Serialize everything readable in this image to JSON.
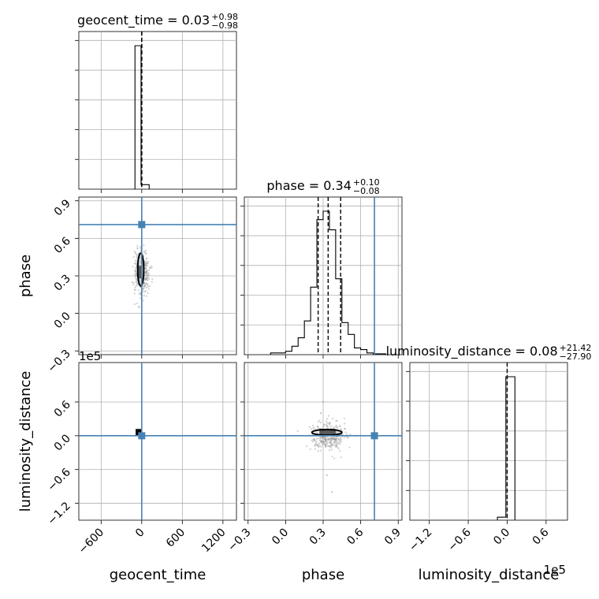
{
  "chart_data": {
    "type": "corner",
    "parameters": [
      "geocent_time",
      "phase",
      "luminosity_distance"
    ],
    "truth": {
      "geocent_time": 0,
      "phase": 0.71,
      "luminosity_distance": 0
    },
    "colors": {
      "truth": "#4682b4",
      "hist": "#000000",
      "grid": "#b0b0b0",
      "scatter": "#999999"
    },
    "diagonal": [
      {
        "param": "geocent_time",
        "title_main": "geocent_time = 0.03",
        "title_sup": "+0.98",
        "title_sub": "−0.98",
        "xlim": [
          -930,
          1400
        ],
        "xticks": [
          -600,
          0,
          600,
          1200
        ],
        "quantile_lines": [
          -0.95,
          0.03,
          1.01
        ],
        "hist_bins": [
          {
            "x0": -100,
            "x1": -10,
            "count": 0.96
          },
          {
            "x0": -10,
            "x1": 110,
            "count": 0.03
          }
        ]
      },
      {
        "param": "phase",
        "title_main": "phase = 0.34",
        "title_sup": "+0.10",
        "title_sub": "−0.08",
        "xlim": [
          -0.33,
          0.93
        ],
        "xticks": [
          -0.3,
          0.0,
          0.3,
          0.6,
          0.9
        ],
        "xtick_labels": [
          "−0.3",
          "0.0",
          "0.3",
          "0.6",
          "0.9"
        ],
        "quantile_lines": [
          0.26,
          0.34,
          0.44
        ],
        "hist_bins": [
          {
            "x0": -0.12,
            "x1": 0.0,
            "count": 0.01
          },
          {
            "x0": 0.0,
            "x1": 0.05,
            "count": 0.02
          },
          {
            "x0": 0.05,
            "x1": 0.1,
            "count": 0.05
          },
          {
            "x0": 0.1,
            "x1": 0.15,
            "count": 0.1
          },
          {
            "x0": 0.15,
            "x1": 0.2,
            "count": 0.2
          },
          {
            "x0": 0.2,
            "x1": 0.25,
            "count": 0.4
          },
          {
            "x0": 0.25,
            "x1": 0.3,
            "count": 0.8
          },
          {
            "x0": 0.3,
            "x1": 0.35,
            "count": 0.85
          },
          {
            "x0": 0.35,
            "x1": 0.4,
            "count": 0.74
          },
          {
            "x0": 0.4,
            "x1": 0.45,
            "count": 0.45
          },
          {
            "x0": 0.45,
            "x1": 0.5,
            "count": 0.19
          },
          {
            "x0": 0.5,
            "x1": 0.55,
            "count": 0.12
          },
          {
            "x0": 0.55,
            "x1": 0.6,
            "count": 0.04
          },
          {
            "x0": 0.6,
            "x1": 0.65,
            "count": 0.03
          },
          {
            "x0": 0.65,
            "x1": 0.7,
            "count": 0.01
          },
          {
            "x0": 0.7,
            "x1": 0.8,
            "count": 0.005
          }
        ]
      },
      {
        "param": "luminosity_distance",
        "title_main": "luminosity_distance = 0.08",
        "title_sup": "+21.42",
        "title_sub": "−27.90",
        "xlim": [
          -1.5,
          0.93
        ],
        "xticks": [
          -1.2,
          -0.6,
          0.0,
          0.6
        ],
        "xtick_labels": [
          "−1.2",
          "−0.6",
          "0.0",
          "0.6"
        ],
        "offset_label": "1e5",
        "quantile_lines": [
          0.0
        ],
        "hist_bins": [
          {
            "x0": -0.15,
            "x1": -0.02,
            "count": 0.02
          },
          {
            "x0": -0.02,
            "x1": 0.12,
            "count": 0.96
          }
        ]
      }
    ],
    "panels": [
      {
        "x_param": "geocent_time",
        "y_param": "phase",
        "xlim": [
          -930,
          1400
        ],
        "ylim": [
          -0.33,
          0.93
        ],
        "yticks": [
          -0.3,
          0.0,
          0.3,
          0.6,
          0.9
        ],
        "ytick_labels": [
          "−0.3",
          "0.0",
          "0.3",
          "0.6",
          "0.9"
        ],
        "cloud": {
          "cx": 0,
          "cy": 0.33,
          "sx": 55,
          "sy": 0.09,
          "n": 350
        },
        "contour": {
          "cx": -15,
          "cy": 0.35,
          "rx": 45,
          "ry": 0.13
        },
        "dense_box": {
          "x0": -50,
          "x1": 0,
          "y0": 0.28,
          "y1": 0.38
        }
      },
      {
        "x_param": "geocent_time",
        "y_param": "luminosity_distance",
        "xlim": [
          -930,
          1400
        ],
        "ylim": [
          -1.5,
          1.3
        ],
        "yticks": [
          -1.2,
          -0.6,
          0.0,
          0.6
        ],
        "ytick_labels": [
          "−1.2",
          "−0.6",
          "0.0",
          "0.6"
        ],
        "offset_label": "1e5",
        "dense_box": {
          "x0": -90,
          "x1": -10,
          "y0": 0.0,
          "y1": 0.12
        }
      },
      {
        "x_param": "phase",
        "y_param": "luminosity_distance",
        "xlim": [
          -0.33,
          0.93
        ],
        "ylim": [
          -1.5,
          1.3
        ],
        "cloud": {
          "cx": 0.34,
          "cy": 0.0,
          "sx": 0.07,
          "sy": 0.12,
          "n": 350
        },
        "contour": {
          "cx": 0.33,
          "cy": 0.06,
          "rx": 0.12,
          "ry": 0.05
        },
        "dense_box": {
          "x0": 0.27,
          "x1": 0.4,
          "y0": 0.0,
          "y1": 0.12
        },
        "outliers": [
          {
            "x": 0.3,
            "y": 0.6
          },
          {
            "x": 0.28,
            "y": 0.4
          },
          {
            "x": 0.37,
            "y": -1.0
          },
          {
            "x": 0.33,
            "y": -0.7
          }
        ]
      }
    ],
    "xlabels": [
      "geocent_time",
      "phase",
      "luminosity_distance"
    ],
    "ylabels": [
      "phase",
      "luminosity_distance"
    ],
    "grid": true
  }
}
